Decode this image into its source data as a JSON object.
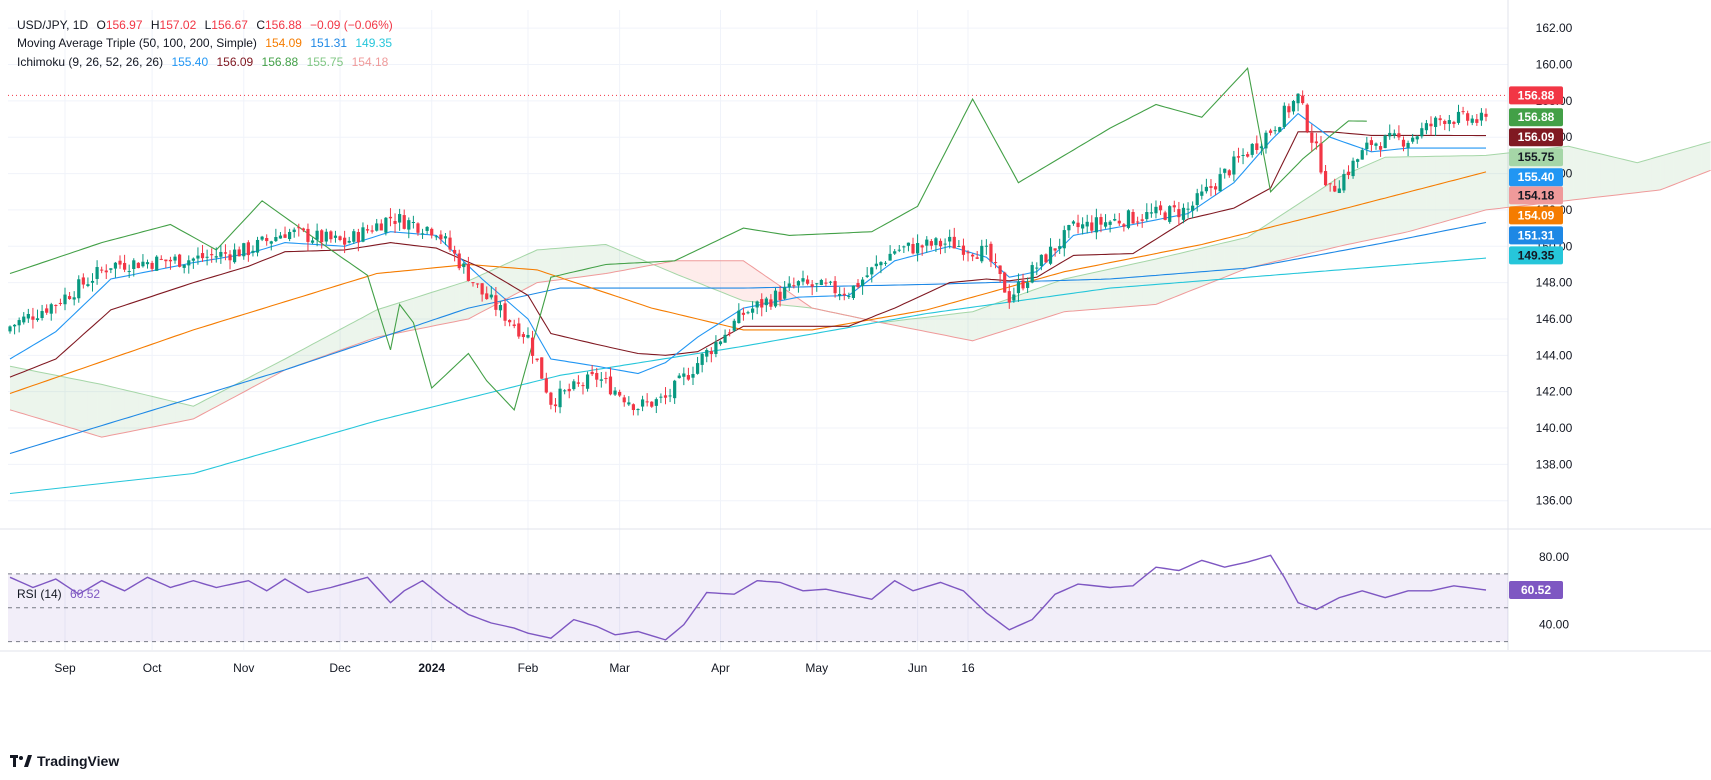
{
  "symbol": "USD/JPY, 1D",
  "ohlc": {
    "O": "156.97",
    "H": "157.02",
    "L": "156.67",
    "C": "156.88",
    "chg": "−0.09 (−0.06%)"
  },
  "ma": {
    "label": "Moving Average Triple (50, 100, 200, Simple)",
    "v1": "154.09",
    "v2": "151.31",
    "v3": "149.35"
  },
  "ichimoku": {
    "label": "Ichimoku (9, 26, 52, 26, 26)",
    "v1": "155.40",
    "v2": "156.09",
    "v3": "156.88",
    "v4": "155.75",
    "v5": "154.18"
  },
  "rsi": {
    "label": "RSI (14)",
    "value": "60.52"
  },
  "brand": "TradingView",
  "colors": {
    "up": "#089981",
    "down": "#f23645",
    "tenkan": "#2196f3",
    "kijun": "#801922",
    "chikou": "#43a047",
    "spanA": "#a5d6a7",
    "spanB": "#ef9a9a",
    "ma50": "#f57c00",
    "ma100": "#1e88e5",
    "ma200": "#26c6da",
    "rsi": "#7e57c2"
  },
  "chart_data": {
    "type": "candlestick",
    "title": "USD/JPY, 1D",
    "ylim": [
      134.5,
      163
    ],
    "yticks": [
      136,
      138,
      140,
      142,
      144,
      146,
      148,
      150,
      152,
      154,
      156,
      158,
      160,
      162
    ],
    "xticks": [
      "Sep",
      "Oct",
      "Nov",
      "Dec",
      "2024",
      "Feb",
      "Mar",
      "Apr",
      "May",
      "Jun",
      "16"
    ],
    "price_tags": [
      {
        "label": "156.88",
        "value": 158.3,
        "bg": "#f23645",
        "fg": "#ffffff"
      },
      {
        "label": "156.88",
        "value": 157.1,
        "bg": "#43a047",
        "fg": "#ffffff"
      },
      {
        "label": "156.09",
        "value": 156.0,
        "bg": "#801922",
        "fg": "#ffffff"
      },
      {
        "label": "155.75",
        "value": 154.9,
        "bg": "#a5d6a7",
        "fg": "#131722"
      },
      {
        "label": "155.40",
        "value": 153.8,
        "bg": "#2196f3",
        "fg": "#ffffff"
      },
      {
        "label": "154.18",
        "value": 152.8,
        "bg": "#ef9a9a",
        "fg": "#131722"
      },
      {
        "label": "154.09",
        "value": 151.7,
        "bg": "#f57c00",
        "fg": "#ffffff"
      },
      {
        "label": "151.31",
        "value": 150.6,
        "bg": "#1e88e5",
        "fg": "#ffffff"
      },
      {
        "label": "149.35",
        "value": 149.5,
        "bg": "#26c6da",
        "fg": "#131722"
      }
    ],
    "anchors": {
      "close": [
        [
          0,
          145.6
        ],
        [
          10,
          146.9
        ],
        [
          22,
          149.0
        ],
        [
          40,
          149.3
        ],
        [
          52,
          149.8
        ],
        [
          60,
          150.8
        ],
        [
          73,
          150.2
        ],
        [
          83,
          151.6
        ],
        [
          93,
          150.9
        ],
        [
          103,
          147.4
        ],
        [
          113,
          145.0
        ],
        [
          118,
          141.5
        ],
        [
          128,
          142.8
        ],
        [
          137,
          141.2
        ],
        [
          143,
          141.6
        ],
        [
          150,
          143.6
        ],
        [
          160,
          146.3
        ],
        [
          172,
          147.9
        ],
        [
          183,
          147.5
        ],
        [
          193,
          149.8
        ],
        [
          205,
          150.2
        ],
        [
          213,
          149.6
        ],
        [
          218,
          147.2
        ],
        [
          224,
          148.9
        ],
        [
          232,
          151.0
        ],
        [
          245,
          151.6
        ],
        [
          257,
          152.0
        ],
        [
          267,
          154.5
        ],
        [
          275,
          156.4
        ],
        [
          281,
          158.2
        ],
        [
          288,
          153.0
        ],
        [
          297,
          155.7
        ],
        [
          305,
          155.9
        ],
        [
          313,
          157.1
        ],
        [
          322,
          156.88
        ]
      ],
      "ma50": [
        [
          0,
          141.9
        ],
        [
          40,
          145.4
        ],
        [
          80,
          148.5
        ],
        [
          100,
          149.0
        ],
        [
          115,
          148.7
        ],
        [
          140,
          146.6
        ],
        [
          160,
          145.4
        ],
        [
          175,
          145.4
        ],
        [
          200,
          146.5
        ],
        [
          230,
          148.6
        ],
        [
          260,
          150.1
        ],
        [
          290,
          152.0
        ],
        [
          322,
          154.09
        ]
      ],
      "ma100": [
        [
          0,
          138.6
        ],
        [
          60,
          143.2
        ],
        [
          100,
          146.6
        ],
        [
          120,
          147.7
        ],
        [
          160,
          147.7
        ],
        [
          200,
          147.9
        ],
        [
          240,
          148.2
        ],
        [
          270,
          148.8
        ],
        [
          300,
          150.2
        ],
        [
          322,
          151.31
        ]
      ],
      "ma200": [
        [
          0,
          136.4
        ],
        [
          40,
          137.5
        ],
        [
          80,
          140.4
        ],
        [
          120,
          142.9
        ],
        [
          160,
          144.5
        ],
        [
          200,
          146.3
        ],
        [
          240,
          147.7
        ],
        [
          280,
          148.5
        ],
        [
          322,
          149.35
        ]
      ],
      "tenkan": [
        [
          0,
          143.8
        ],
        [
          10,
          145.3
        ],
        [
          22,
          148.2
        ],
        [
          40,
          149.1
        ],
        [
          52,
          149.6
        ],
        [
          60,
          150.2
        ],
        [
          73,
          150.0
        ],
        [
          83,
          150.8
        ],
        [
          93,
          150.6
        ],
        [
          103,
          148.2
        ],
        [
          113,
          146.0
        ],
        [
          118,
          143.8
        ],
        [
          128,
          143.4
        ],
        [
          137,
          143.0
        ],
        [
          143,
          143.6
        ],
        [
          150,
          145.0
        ],
        [
          160,
          146.6
        ],
        [
          172,
          147.2
        ],
        [
          183,
          147.3
        ],
        [
          193,
          149.2
        ],
        [
          205,
          150.0
        ],
        [
          213,
          149.4
        ],
        [
          218,
          148.3
        ],
        [
          224,
          148.6
        ],
        [
          232,
          150.6
        ],
        [
          245,
          151.2
        ],
        [
          257,
          151.8
        ],
        [
          267,
          153.5
        ],
        [
          275,
          155.8
        ],
        [
          281,
          157.3
        ],
        [
          288,
          156.0
        ],
        [
          297,
          155.2
        ],
        [
          305,
          155.4
        ],
        [
          313,
          155.4
        ],
        [
          322,
          155.4
        ]
      ],
      "kijun": [
        [
          0,
          142.8
        ],
        [
          10,
          143.8
        ],
        [
          22,
          146.5
        ],
        [
          40,
          148.0
        ],
        [
          52,
          148.9
        ],
        [
          60,
          149.7
        ],
        [
          73,
          149.8
        ],
        [
          83,
          150.2
        ],
        [
          93,
          149.9
        ],
        [
          103,
          148.8
        ],
        [
          113,
          147.3
        ],
        [
          118,
          145.2
        ],
        [
          128,
          144.6
        ],
        [
          137,
          144.1
        ],
        [
          143,
          144.0
        ],
        [
          150,
          144.2
        ],
        [
          160,
          145.6
        ],
        [
          172,
          145.6
        ],
        [
          183,
          145.6
        ],
        [
          193,
          146.6
        ],
        [
          205,
          148.0
        ],
        [
          213,
          148.2
        ],
        [
          218,
          148.1
        ],
        [
          224,
          148.3
        ],
        [
          232,
          149.5
        ],
        [
          245,
          149.6
        ],
        [
          257,
          151.5
        ],
        [
          267,
          152.1
        ],
        [
          275,
          153.2
        ],
        [
          281,
          156.3
        ],
        [
          288,
          156.3
        ],
        [
          297,
          156.1
        ],
        [
          305,
          156.1
        ],
        [
          313,
          156.1
        ],
        [
          322,
          156.09
        ]
      ],
      "chikou": [
        [
          0,
          148.5
        ],
        [
          20,
          150.2
        ],
        [
          35,
          151.2
        ],
        [
          45,
          149.8
        ],
        [
          55,
          152.5
        ],
        [
          70,
          149.8
        ],
        [
          78,
          148.4
        ],
        [
          83,
          144.3
        ],
        [
          85,
          146.8
        ],
        [
          88,
          145.8
        ],
        [
          92,
          142.2
        ],
        [
          100,
          144.1
        ],
        [
          104,
          142.6
        ],
        [
          110,
          141.0
        ],
        [
          118,
          148.3
        ],
        [
          130,
          149.0
        ],
        [
          145,
          149.2
        ],
        [
          160,
          151.0
        ],
        [
          170,
          150.6
        ],
        [
          188,
          150.8
        ],
        [
          198,
          152.2
        ],
        [
          210,
          158.1
        ],
        [
          220,
          153.5
        ],
        [
          240,
          156.5
        ],
        [
          250,
          157.8
        ],
        [
          260,
          157.1
        ],
        [
          270,
          159.8
        ],
        [
          275,
          153.0
        ],
        [
          282,
          154.8
        ],
        [
          292,
          156.9
        ],
        [
          296,
          156.88
        ]
      ],
      "spanA": [
        [
          0,
          143.4
        ],
        [
          20,
          142.4
        ],
        [
          40,
          141.2
        ],
        [
          60,
          143.8
        ],
        [
          80,
          146.5
        ],
        [
          100,
          148.1
        ],
        [
          115,
          149.8
        ],
        [
          130,
          150.1
        ],
        [
          145,
          148.5
        ],
        [
          160,
          147.0
        ],
        [
          175,
          146.6
        ],
        [
          190,
          145.8
        ],
        [
          210,
          146.4
        ],
        [
          230,
          148.2
        ],
        [
          250,
          149.3
        ],
        [
          270,
          150.5
        ],
        [
          290,
          153.8
        ],
        [
          300,
          154.9
        ],
        [
          322,
          155.0
        ],
        [
          340,
          155.5
        ],
        [
          355,
          154.6
        ],
        [
          371,
          155.75
        ]
      ],
      "spanB": [
        [
          0,
          141.0
        ],
        [
          20,
          139.5
        ],
        [
          40,
          140.5
        ],
        [
          60,
          143.2
        ],
        [
          80,
          145.0
        ],
        [
          100,
          146.0
        ],
        [
          115,
          148.0
        ],
        [
          130,
          148.5
        ],
        [
          145,
          149.2
        ],
        [
          160,
          149.2
        ],
        [
          175,
          146.6
        ],
        [
          190,
          145.8
        ],
        [
          210,
          144.8
        ],
        [
          230,
          146.4
        ],
        [
          250,
          146.8
        ],
        [
          270,
          148.8
        ],
        [
          290,
          150.0
        ],
        [
          305,
          150.8
        ],
        [
          322,
          152.0
        ],
        [
          360,
          153.1
        ],
        [
          371,
          154.18
        ]
      ]
    },
    "rsi": {
      "value": 60.52,
      "ylim": [
        28,
        93
      ],
      "ticks": [
        40,
        80
      ],
      "levels": {
        "upper": 70,
        "middle": 50,
        "lower": 30
      },
      "points": [
        [
          0,
          68
        ],
        [
          5,
          62
        ],
        [
          10,
          67
        ],
        [
          15,
          58
        ],
        [
          20,
          66
        ],
        [
          25,
          60
        ],
        [
          30,
          68
        ],
        [
          35,
          62
        ],
        [
          40,
          66
        ],
        [
          45,
          62
        ],
        [
          52,
          66
        ],
        [
          56,
          60
        ],
        [
          60,
          67
        ],
        [
          65,
          59
        ],
        [
          70,
          62
        ],
        [
          78,
          68
        ],
        [
          83,
          53
        ],
        [
          86,
          60
        ],
        [
          90,
          66
        ],
        [
          95,
          55
        ],
        [
          100,
          46
        ],
        [
          105,
          41
        ],
        [
          110,
          38
        ],
        [
          113,
          35
        ],
        [
          118,
          32
        ],
        [
          123,
          43
        ],
        [
          128,
          39
        ],
        [
          132,
          34
        ],
        [
          137,
          36
        ],
        [
          143,
          31
        ],
        [
          147,
          40
        ],
        [
          152,
          59
        ],
        [
          158,
          58
        ],
        [
          163,
          66
        ],
        [
          168,
          65
        ],
        [
          173,
          60
        ],
        [
          178,
          61
        ],
        [
          183,
          58
        ],
        [
          188,
          55
        ],
        [
          193,
          66
        ],
        [
          197,
          60
        ],
        [
          203,
          65
        ],
        [
          208,
          60
        ],
        [
          213,
          47
        ],
        [
          218,
          37
        ],
        [
          223,
          43
        ],
        [
          228,
          58
        ],
        [
          233,
          64
        ],
        [
          240,
          62
        ],
        [
          245,
          63
        ],
        [
          250,
          74
        ],
        [
          255,
          72
        ],
        [
          260,
          78
        ],
        [
          265,
          74
        ],
        [
          270,
          77
        ],
        [
          275,
          81
        ],
        [
          278,
          68
        ],
        [
          281,
          53
        ],
        [
          285,
          49
        ],
        [
          290,
          56
        ],
        [
          295,
          60
        ],
        [
          300,
          56
        ],
        [
          305,
          60
        ],
        [
          310,
          60
        ],
        [
          315,
          63
        ],
        [
          322,
          60.52
        ]
      ]
    }
  }
}
